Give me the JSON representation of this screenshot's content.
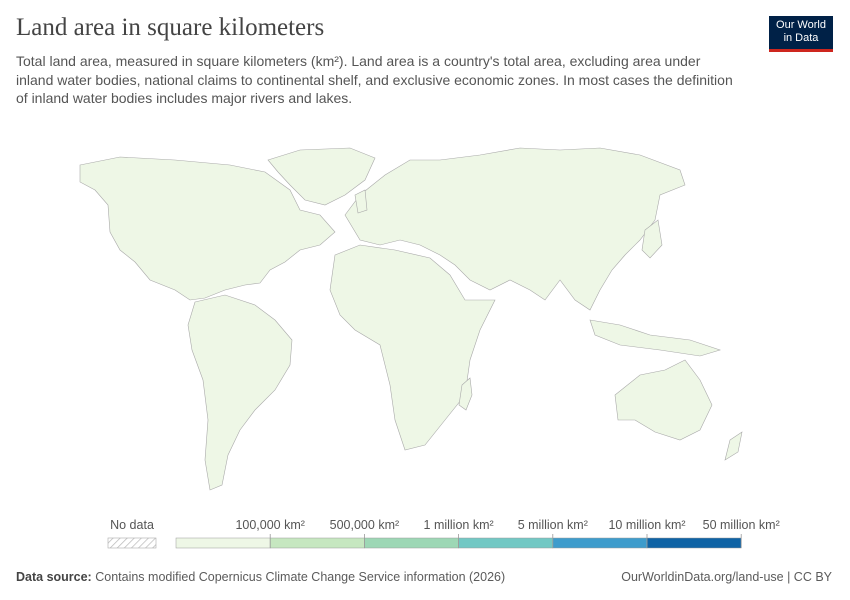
{
  "header": {
    "title": "Land area in square kilometers",
    "subtitle": "Total land area, measured in square kilometers (km²). Land area is a country's total area, excluding area under inland water bodies, national claims to continental shelf, and exclusive economic zones. In most cases the definition of inland water bodies includes major rivers and lakes."
  },
  "logo": {
    "line1": "Our World",
    "line2": "in Data"
  },
  "legend": {
    "no_data": "No data",
    "bins": [
      {
        "color": "#eef7e6"
      },
      {
        "color": "#c6e7c0"
      },
      {
        "color": "#9dd7b5"
      },
      {
        "color": "#72c8c4"
      },
      {
        "color": "#3e9ccc"
      },
      {
        "color": "#0f63a5"
      }
    ],
    "ticks": [
      "100,000 km²",
      "500,000 km²",
      "1 million km²",
      "5 million km²",
      "10 million km²",
      "50 million km²"
    ]
  },
  "footer": {
    "source_label": "Data source:",
    "source": "Contains modified Copernicus Climate Change Service information (2026)",
    "credit": "OurWorldinData.org/land-use | CC BY"
  }
}
